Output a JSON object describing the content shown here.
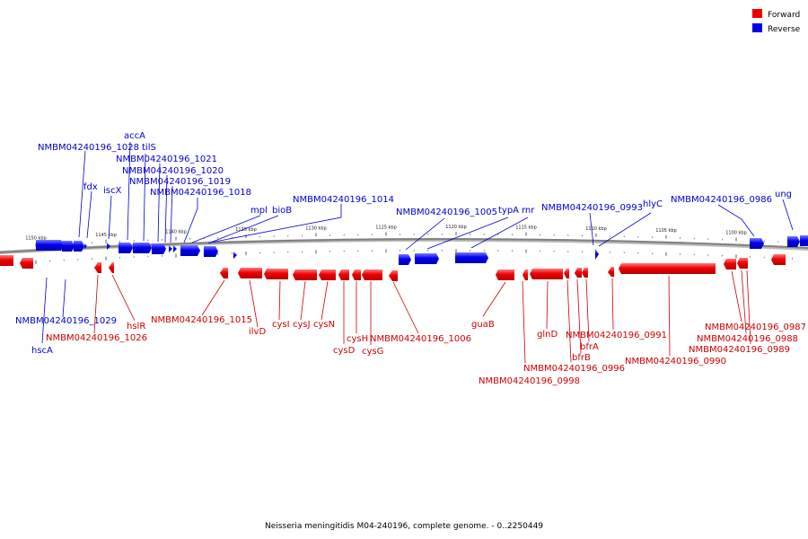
{
  "caption": "Neisseria meningitidis M04-240196, complete genome. - 0..2250449",
  "legend": [
    {
      "label": "Forward",
      "color": "#ee0000"
    },
    {
      "label": "Reverse",
      "color": "#0000ee"
    }
  ],
  "colors": {
    "forward": "#ee0000",
    "reverse": "#0000ee",
    "backbone": "#888888"
  },
  "ticks": [
    {
      "label": "1150 kbp",
      "pos": 1150
    },
    {
      "label": "1145 kbp",
      "pos": 1145
    },
    {
      "label": "1140 kbp",
      "pos": 1140
    },
    {
      "label": "1135 kbp",
      "pos": 1135
    },
    {
      "label": "1130 kbp",
      "pos": 1130
    },
    {
      "label": "1125 kbp",
      "pos": 1125
    },
    {
      "label": "1120 kbp",
      "pos": 1120
    },
    {
      "label": "1115 kbp",
      "pos": 1115
    },
    {
      "label": "1110 kbp",
      "pos": 1110
    },
    {
      "label": "1105 kbp",
      "pos": 1105
    },
    {
      "label": "1100 kbp",
      "pos": 1100
    }
  ],
  "labels": {
    "reverse": [
      {
        "text": "accA"
      },
      {
        "text": "tilS"
      },
      {
        "text": "NMBM04240196_1028"
      },
      {
        "text": "NMBM04240196_1021"
      },
      {
        "text": "NMBM04240196_1020"
      },
      {
        "text": "NMBM04240196_1019"
      },
      {
        "text": "fdx"
      },
      {
        "text": "iscX"
      },
      {
        "text": "NMBM04240196_1018"
      },
      {
        "text": "NMBM04240196_1014"
      },
      {
        "text": "mpl"
      },
      {
        "text": "bioB"
      },
      {
        "text": "NMBM04240196_1005"
      },
      {
        "text": "typA"
      },
      {
        "text": "rnr"
      },
      {
        "text": "NMBM04240196_0993"
      },
      {
        "text": "hlyC"
      },
      {
        "text": "NMBM04240196_0986"
      },
      {
        "text": "ung"
      },
      {
        "text": "NMBM04240196_1029"
      },
      {
        "text": "hscA"
      }
    ],
    "forward": [
      {
        "text": "NMBM04240196_1026"
      },
      {
        "text": "hslR"
      },
      {
        "text": "NMBM04240196_1015"
      },
      {
        "text": "ilvD"
      },
      {
        "text": "cysI"
      },
      {
        "text": "cysJ"
      },
      {
        "text": "cysN"
      },
      {
        "text": "cysD"
      },
      {
        "text": "cysH"
      },
      {
        "text": "cysG"
      },
      {
        "text": "NMBM04240196_1006"
      },
      {
        "text": "guaB"
      },
      {
        "text": "glnD"
      },
      {
        "text": "NMBM04240196_0996"
      },
      {
        "text": "NMBM04240196_0998"
      },
      {
        "text": "bfrB"
      },
      {
        "text": "bfrA"
      },
      {
        "text": "NMBM04240196_0991"
      },
      {
        "text": "NMBM04240196_0990"
      },
      {
        "text": "NMBM04240196_0987"
      },
      {
        "text": "NMBM04240196_0988"
      },
      {
        "text": "NMBM04240196_0989"
      }
    ]
  }
}
